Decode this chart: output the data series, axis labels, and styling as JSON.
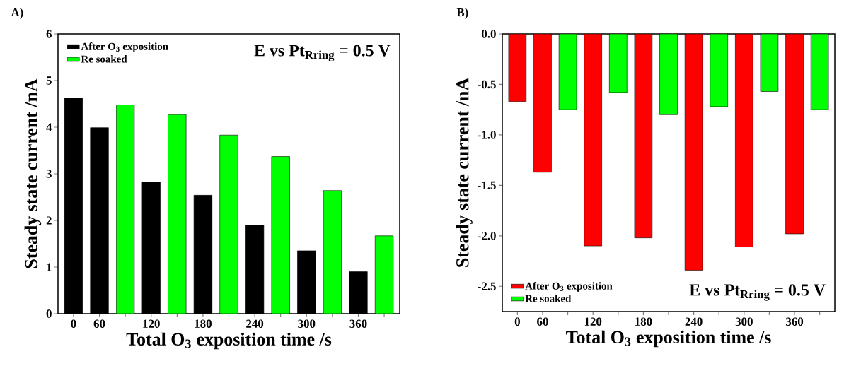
{
  "chart_data": [
    {
      "type": "bar",
      "title": "A)",
      "xlabel": "Total O$_{3}$ exposition time /s",
      "ylabel": "Steady state current /nA",
      "categories": [
        "0",
        "60",
        null,
        "120",
        null,
        "180",
        null,
        "240",
        null,
        "300",
        null,
        "360",
        null
      ],
      "series": [
        {
          "name": "After O$_{3}$  exposition",
          "color": "#000000",
          "values": [
            4.63,
            3.99,
            null,
            2.82,
            null,
            2.54,
            null,
            1.9,
            null,
            1.35,
            null,
            0.9,
            null
          ]
        },
        {
          "name": "Re soaked",
          "color": "#00ff00",
          "values": [
            null,
            null,
            4.48,
            null,
            4.27,
            null,
            3.83,
            null,
            3.37,
            null,
            2.64,
            null,
            1.67
          ]
        }
      ],
      "ylim": [
        0,
        6
      ],
      "yticks": [
        0,
        1,
        2,
        3,
        4,
        5,
        6
      ],
      "legend": "top left",
      "annotations": [
        "E vs Pt$_{Rring}$ = 0.5 V"
      ]
    },
    {
      "type": "bar",
      "title": "B)",
      "xlabel": "Total O$_{3}$ exposition time /s",
      "ylabel": "Steady state current /nA",
      "categories": [
        "0",
        "60",
        null,
        "120",
        null,
        "180",
        null,
        "240",
        null,
        "300",
        null,
        "360",
        null
      ],
      "series": [
        {
          "name": "After O$_{3}$  exposition",
          "color": "#ff0000",
          "values": [
            -0.67,
            -1.37,
            null,
            -2.1,
            null,
            -2.02,
            null,
            -2.34,
            null,
            -2.11,
            null,
            -1.98,
            null
          ]
        },
        {
          "name": "Re soaked",
          "color": "#00ff00",
          "values": [
            null,
            null,
            -0.75,
            null,
            -0.58,
            null,
            -0.8,
            null,
            -0.72,
            null,
            -0.57,
            null,
            -0.75
          ]
        }
      ],
      "ylim": [
        -2.75,
        0
      ],
      "yticks": [
        {
          "value": -2.5,
          "label": "-2.5"
        },
        {
          "value": -2.0,
          "label": "-2.0"
        },
        {
          "value": -1.5,
          "label": "-1.5"
        },
        {
          "value": -1.0,
          "label": "-1.0"
        },
        {
          "value": -0.5,
          "label": "-0.5"
        },
        {
          "value": 0,
          "label": "0.0"
        }
      ],
      "legend": "bottom left",
      "annotations": [
        "E vs Pt$_{Rring}$ = 0.5 V"
      ]
    }
  ]
}
